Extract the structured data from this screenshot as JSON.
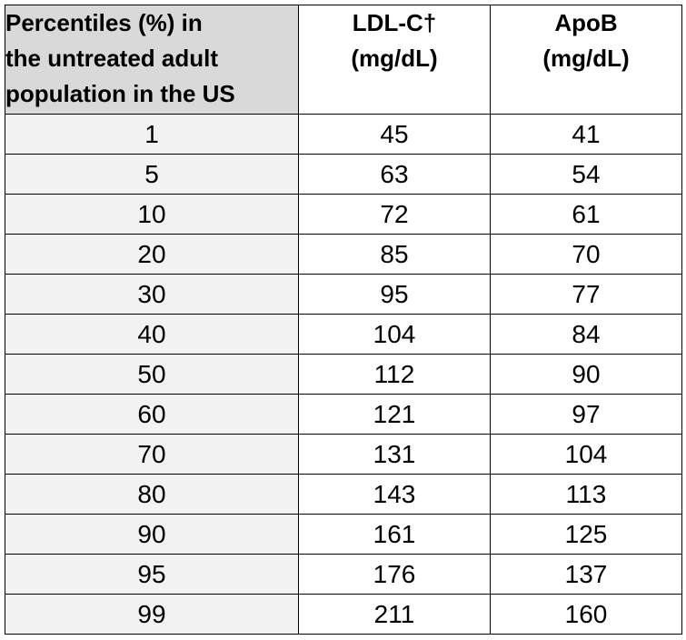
{
  "table": {
    "headers": {
      "percentile": [
        "Percentiles (%) in",
        "the untreated adult",
        "population in the US"
      ],
      "ldlc": [
        "LDL-C†",
        "(mg/dL)"
      ],
      "apob": [
        "ApoB",
        "(mg/dL)"
      ]
    },
    "rows": [
      {
        "percentile": "1",
        "ldlc": "45",
        "apob": "41"
      },
      {
        "percentile": "5",
        "ldlc": "63",
        "apob": "54"
      },
      {
        "percentile": "10",
        "ldlc": "72",
        "apob": "61"
      },
      {
        "percentile": "20",
        "ldlc": "85",
        "apob": "70"
      },
      {
        "percentile": "30",
        "ldlc": "95",
        "apob": "77"
      },
      {
        "percentile": "40",
        "ldlc": "104",
        "apob": "84"
      },
      {
        "percentile": "50",
        "ldlc": "112",
        "apob": "90"
      },
      {
        "percentile": "60",
        "ldlc": "121",
        "apob": "97"
      },
      {
        "percentile": "70",
        "ldlc": "131",
        "apob": "104"
      },
      {
        "percentile": "80",
        "ldlc": "143",
        "apob": "113"
      },
      {
        "percentile": "90",
        "ldlc": "161",
        "apob": "125"
      },
      {
        "percentile": "95",
        "ldlc": "176",
        "apob": "137"
      },
      {
        "percentile": "99",
        "ldlc": "211",
        "apob": "160"
      }
    ]
  },
  "colors": {
    "header_first_bg": "#d9d9d9",
    "first_column_bg": "#f2f2f2",
    "border": "#000000"
  }
}
